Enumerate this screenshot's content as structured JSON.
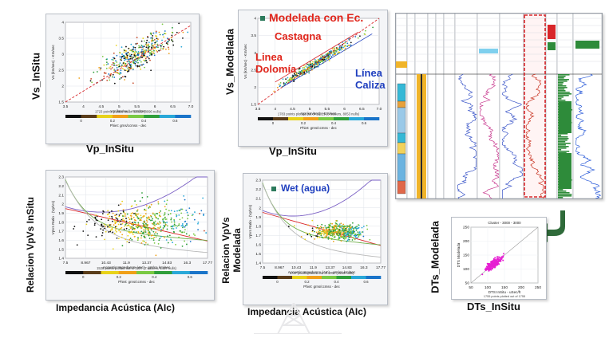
{
  "colors": {
    "red_text": "#e0251b",
    "blue_text": "#1f3fbf",
    "arrow": "#2f6b3a",
    "panel_bg": "#f4f5f7",
    "magenta": "#e61ed2"
  },
  "labels": {
    "p1_y": "Vs_InSitu",
    "p1_x": "Vp_InSitu",
    "p2_y": "Vs_Modelada",
    "p2_x": "Vp_InSitu",
    "p3_y": "Relacion VpVs InSitu",
    "p3_x": "Impedancia Acústica (AIc)",
    "p4_y": "Relacion VpVs Modelada",
    "p4_x": "Impedancia Acústica (AIc)",
    "p5_y": "DTs_Modelada",
    "p5_x": "DTs_InSitu"
  },
  "annotations": {
    "modelada": "Modelada con Ec.",
    "castagna": "Castagna",
    "linea_dolomia": "Linea Dolomía",
    "linea_caliza": "Línea Caliza",
    "wet": "Wet (agua)"
  },
  "chart_data": [
    {
      "type": "scatter",
      "ylabel": "Vs (km/sec) - Km/sec",
      "xlabel": "Vp (km/sec) - Km/sec",
      "xlim": [
        3.5,
        7.0
      ],
      "ylim": [
        1.5,
        4.0
      ],
      "xticks": [
        "3.5",
        "4",
        "4.5",
        "5",
        "5.5",
        "6",
        "6.5",
        "7.0"
      ],
      "yticks": [
        "1.5",
        "2",
        "2.5",
        "3",
        "3.5",
        "4"
      ],
      "colorbar_ticks": [
        "0",
        "0.2",
        "0.4",
        "0.6"
      ],
      "colorbar_label": "Phiet: grns/ccmss - dec",
      "footnote": "1723 points plotted out of 10029 (8096 nulls)",
      "trend": {
        "x": [
          3.5,
          7.0
        ],
        "y": [
          1.5,
          3.9
        ]
      },
      "cloud": {
        "x_center": 5.5,
        "y_center": 2.95,
        "slope": 0.55
      }
    },
    {
      "type": "scatter",
      "ylabel": "Vs (km/sec) - Km/sec",
      "xlabel": "Vp (km/sec) - Km/sec",
      "xlim": [
        3.5,
        7.0
      ],
      "ylim": [
        1.5,
        4.0
      ],
      "xticks": [
        "3.5",
        "4",
        "4.5",
        "5",
        "5.5",
        "6",
        "6.5",
        "7.0"
      ],
      "yticks": [
        "1.5",
        "2",
        "2.5",
        "3",
        "3.5",
        "4"
      ],
      "colorbar_ticks": [
        "0",
        "0.2",
        "0.4",
        "0.6"
      ],
      "colorbar_label": "Phiet: grns/ccmss - dec",
      "footnote": "1783 points plotted out of 10029 (8 outliers, 8053 nulls)",
      "trend": {
        "x": [
          3.5,
          7.0
        ],
        "y": [
          1.5,
          4.0
        ]
      },
      "cloud": {
        "x_center": 5.2,
        "y_center": 2.7,
        "slope": 0.62
      }
    },
    {
      "type": "scatter",
      "ylabel": "VpVs Ratio - (Vp/Vs)",
      "xlabel": "Acoustic Impedance (AIc) - gm/cc.km/sec",
      "xlim": [
        7.5,
        17.77
      ],
      "ylim": [
        1.4,
        2.3
      ],
      "xticks": [
        "7.5",
        "8.967",
        "10.43",
        "11.9",
        "13.37",
        "14.83",
        "16.3",
        "17.77"
      ],
      "yticks": [
        "1.4",
        "1.5",
        "1.6",
        "1.7",
        "1.8",
        "1.9",
        "2",
        "2.1",
        "2.2",
        "2.3"
      ],
      "colorbar_ticks": [
        "0",
        "0.2",
        "0.4",
        "0.6"
      ],
      "colorbar_label": "Phiet: grns/ccmss - dec",
      "footnote": "1528 points plotted out of 1987 (2 outliers, 1457 nulls)"
    },
    {
      "type": "scatter",
      "ylabel": "VpVs Ratio - (Vp/Vs)",
      "xlabel": "Acoustic Impedance (AIc) - gm/cc.km/sec",
      "xlim": [
        7.5,
        17.77
      ],
      "ylim": [
        1.4,
        2.3
      ],
      "xticks": [
        "7.5",
        "8.967",
        "10.43",
        "11.9",
        "13.37",
        "14.83",
        "16.3",
        "17.77"
      ],
      "yticks": [
        "1.4",
        "1.5",
        "1.6",
        "1.7",
        "1.8",
        "1.9",
        "2",
        "2.1",
        "2.2",
        "2.3"
      ],
      "colorbar_ticks": [
        "0",
        "0.2",
        "0.4",
        "0.6"
      ],
      "colorbar_label": "Phiet: grns/ccmss - dec",
      "footnote": "1727 points plotted out of 1907 (1690 nulls)"
    },
    {
      "type": "scatter",
      "title": "Cluster - 3000 - 3000",
      "ylabel": "DTS Modelada",
      "xlabel": "DTS InSitu - uSec/ft",
      "xlim": [
        50,
        250
      ],
      "ylim": [
        50,
        250
      ],
      "xticks": [
        "50",
        "100",
        "150",
        "200",
        "250"
      ],
      "yticks": [
        "50",
        "100",
        "150",
        "200",
        "250"
      ],
      "footnote": "1755 points plotted out of 1755",
      "cloud": {
        "x_center": 118,
        "y_center": 118
      }
    }
  ]
}
